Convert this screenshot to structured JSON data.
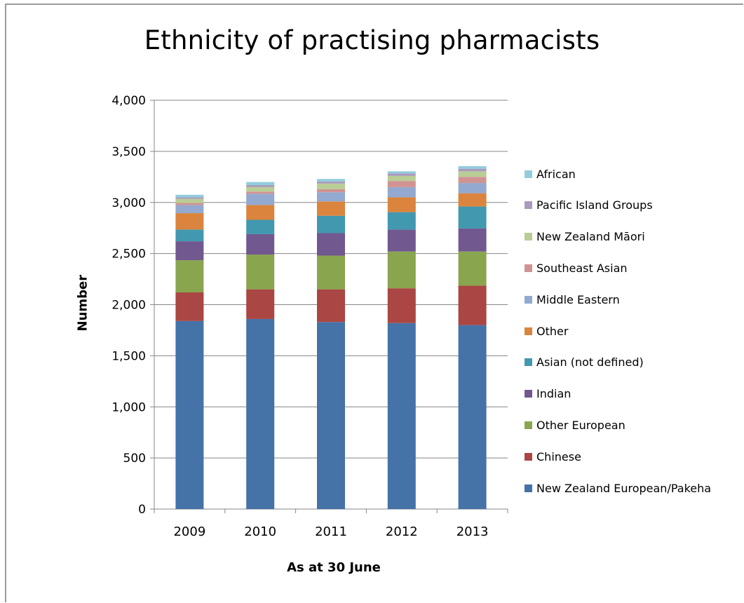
{
  "chart_data": {
    "type": "bar",
    "stacked": true,
    "title": "Ethnicity of practising pharmacists",
    "xlabel": "As at 30 June",
    "ylabel": "Number",
    "ylim": [
      0,
      4000
    ],
    "yticks": [
      0,
      500,
      1000,
      1500,
      2000,
      2500,
      3000,
      3500,
      4000
    ],
    "ytick_labels": [
      "0",
      "500",
      "1,000",
      "1,500",
      "2,000",
      "2,500",
      "3,000",
      "3,500",
      "4,000"
    ],
    "grid": "horizontal",
    "legend_position": "right",
    "categories": [
      "2009",
      "2010",
      "2011",
      "2012",
      "2013"
    ],
    "series": [
      {
        "name": "New Zealand European/Pakeha",
        "color": "#4572A7",
        "values": [
          1840,
          1860,
          1830,
          1820,
          1800
        ]
      },
      {
        "name": "Chinese",
        "color": "#AA4643",
        "values": [
          280,
          290,
          320,
          340,
          385
        ]
      },
      {
        "name": "Other European",
        "color": "#89A54E",
        "values": [
          315,
          340,
          330,
          360,
          335
        ]
      },
      {
        "name": "Indian",
        "color": "#71588F",
        "values": [
          185,
          200,
          220,
          215,
          225
        ]
      },
      {
        "name": "Asian (not defined)",
        "color": "#4198AF",
        "values": [
          115,
          140,
          170,
          170,
          215
        ]
      },
      {
        "name": "Other",
        "color": "#DB843D",
        "values": [
          160,
          145,
          140,
          145,
          130
        ]
      },
      {
        "name": "Middle Eastern",
        "color": "#93A9CF",
        "values": [
          80,
          110,
          90,
          100,
          100
        ]
      },
      {
        "name": "Southeast Asian",
        "color": "#D19392",
        "values": [
          20,
          20,
          30,
          60,
          60
        ]
      },
      {
        "name": "New Zealand Māori",
        "color": "#B9CD96",
        "values": [
          40,
          45,
          55,
          50,
          55
        ]
      },
      {
        "name": "Pacific Island Groups",
        "color": "#A99BBD",
        "values": [
          15,
          20,
          20,
          25,
          25
        ]
      },
      {
        "name": "African",
        "color": "#92CDDC",
        "values": [
          25,
          30,
          25,
          20,
          25
        ]
      }
    ]
  }
}
